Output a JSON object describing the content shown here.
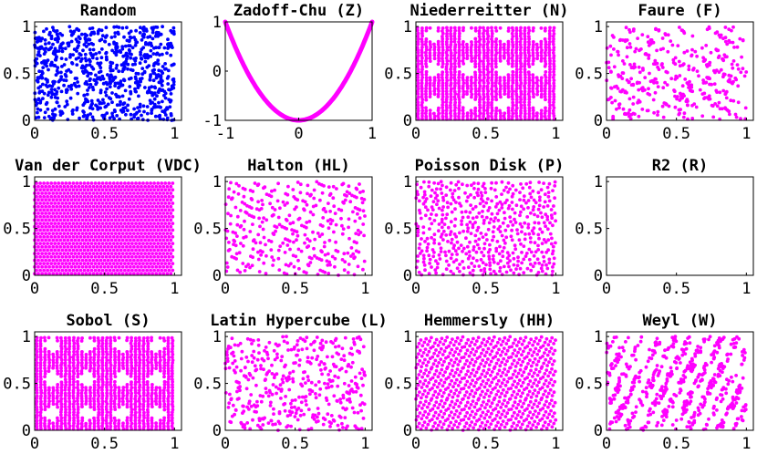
{
  "chart_data": [
    {
      "id": "random",
      "type": "scatter",
      "title": "Random",
      "pattern": "random",
      "color": "#0000ff",
      "xlim": [
        0,
        1.05
      ],
      "ylim": [
        0,
        1.05
      ],
      "xticks": [
        {
          "v": 0,
          "label": "0"
        },
        {
          "v": 0.5,
          "label": "0.5"
        },
        {
          "v": 1,
          "label": "1"
        }
      ],
      "yticks": [
        {
          "v": 0,
          "label": "0"
        },
        {
          "v": 0.5,
          "label": "0.5"
        },
        {
          "v": 1,
          "label": "1"
        }
      ]
    },
    {
      "id": "zadoff-chu",
      "type": "line",
      "title": "Zadoff-Chu (Z)",
      "pattern": "parabola",
      "color": "#ff00ff",
      "formula": "y = 2x^2 - 1",
      "xlim": [
        -1,
        1
      ],
      "ylim": [
        -1,
        1
      ],
      "xticks": [
        {
          "v": -1,
          "label": "-1"
        },
        {
          "v": 0,
          "label": "0"
        },
        {
          "v": 1,
          "label": "1"
        }
      ],
      "yticks": [
        {
          "v": -1,
          "label": "-1"
        },
        {
          "v": 0,
          "label": "0"
        },
        {
          "v": 1,
          "label": "1"
        }
      ]
    },
    {
      "id": "niederreiter",
      "type": "scatter",
      "title": "Niederreitter (N)",
      "pattern": "diamond-lattice",
      "color": "#ff00ff",
      "xlim": [
        0,
        1.05
      ],
      "ylim": [
        0,
        1.05
      ],
      "xticks": [
        {
          "v": 0,
          "label": "0"
        },
        {
          "v": 0.5,
          "label": "0.5"
        },
        {
          "v": 1,
          "label": "1"
        }
      ],
      "yticks": [
        {
          "v": 0,
          "label": "0"
        },
        {
          "v": 0.5,
          "label": "0.5"
        },
        {
          "v": 1,
          "label": "1"
        }
      ]
    },
    {
      "id": "faure",
      "type": "scatter",
      "title": "Faure (F)",
      "pattern": "diagonal-bands",
      "color": "#ff00ff",
      "xlim": [
        0,
        1.05
      ],
      "ylim": [
        0,
        1.05
      ],
      "xticks": [
        {
          "v": 0,
          "label": "0"
        },
        {
          "v": 0.5,
          "label": "0.5"
        },
        {
          "v": 1,
          "label": "1"
        }
      ],
      "yticks": [
        {
          "v": 0,
          "label": "0"
        },
        {
          "v": 0.5,
          "label": "0.5"
        },
        {
          "v": 1,
          "label": "1"
        }
      ]
    },
    {
      "id": "van-der-corput",
      "type": "scatter",
      "title": "Van der Corput (VDC)",
      "pattern": "dense-lattice",
      "color": "#ff00ff",
      "xlim": [
        0,
        1.05
      ],
      "ylim": [
        0,
        1.05
      ],
      "xticks": [
        {
          "v": 0,
          "label": "0"
        },
        {
          "v": 0.5,
          "label": "0.5"
        },
        {
          "v": 1,
          "label": "1"
        }
      ],
      "yticks": [
        {
          "v": 0,
          "label": "0"
        },
        {
          "v": 0.5,
          "label": "0.5"
        },
        {
          "v": 1,
          "label": "1"
        }
      ]
    },
    {
      "id": "halton",
      "type": "scatter",
      "title": "Halton (HL)",
      "pattern": "diagonal-lines",
      "color": "#ff00ff",
      "xlim": [
        0,
        1.05
      ],
      "ylim": [
        0,
        1.05
      ],
      "xticks": [
        {
          "v": 0,
          "label": "0"
        },
        {
          "v": 0.5,
          "label": "0.5"
        },
        {
          "v": 1,
          "label": "1"
        }
      ],
      "yticks": [
        {
          "v": 0,
          "label": "0"
        },
        {
          "v": 0.5,
          "label": "0.5"
        },
        {
          "v": 1,
          "label": "1"
        }
      ]
    },
    {
      "id": "poisson-disk",
      "type": "scatter",
      "title": "Poisson Disk (P)",
      "pattern": "blue-noise",
      "color": "#ff00ff",
      "xlim": [
        0,
        1.05
      ],
      "ylim": [
        0,
        1.05
      ],
      "xticks": [
        {
          "v": 0,
          "label": "0"
        },
        {
          "v": 0.5,
          "label": "0.5"
        },
        {
          "v": 1,
          "label": "1"
        }
      ],
      "yticks": [
        {
          "v": 0,
          "label": "0"
        },
        {
          "v": 0.5,
          "label": "0.5"
        },
        {
          "v": 1,
          "label": "1"
        }
      ]
    },
    {
      "id": "r2",
      "type": "scatter",
      "title": "R2 (R)",
      "pattern": "r2-sequence",
      "color": "#ff00ff",
      "xlim": [
        0,
        1.05
      ],
      "ylim": [
        0,
        1.05
      ],
      "xticks": [
        {
          "v": 0,
          "label": "0"
        },
        {
          "v": 0.5,
          "label": "0.5"
        },
        {
          "v": 1,
          "label": "1"
        }
      ],
      "yticks": [
        {
          "v": 0,
          "label": "0"
        },
        {
          "v": 0.5,
          "label": "0.5"
        },
        {
          "v": 1,
          "label": "1"
        }
      ]
    },
    {
      "id": "sobol",
      "type": "scatter",
      "title": "Sobol (S)",
      "pattern": "diamond-lattice",
      "color": "#ff00ff",
      "xlim": [
        0,
        1.05
      ],
      "ylim": [
        0,
        1.05
      ],
      "xticks": [
        {
          "v": 0,
          "label": "0"
        },
        {
          "v": 0.5,
          "label": "0.5"
        },
        {
          "v": 1,
          "label": "1"
        }
      ],
      "yticks": [
        {
          "v": 0,
          "label": "0"
        },
        {
          "v": 0.5,
          "label": "0.5"
        },
        {
          "v": 1,
          "label": "1"
        }
      ]
    },
    {
      "id": "latin-hypercube",
      "type": "scatter",
      "title": "Latin Hypercube (L)",
      "pattern": "latin-hypercube",
      "color": "#ff00ff",
      "xlim": [
        0,
        1.05
      ],
      "ylim": [
        0,
        1.05
      ],
      "xticks": [
        {
          "v": 0,
          "label": "0"
        },
        {
          "v": 0.5,
          "label": "0.5"
        },
        {
          "v": 1,
          "label": "1"
        }
      ],
      "yticks": [
        {
          "v": 0,
          "label": "0"
        },
        {
          "v": 0.5,
          "label": "0.5"
        },
        {
          "v": 1,
          "label": "1"
        }
      ]
    },
    {
      "id": "hemmersly",
      "type": "scatter",
      "title": "Hemmersly (HH)",
      "pattern": "hammersley",
      "color": "#ff00ff",
      "xlim": [
        0,
        1.05
      ],
      "ylim": [
        0,
        1.05
      ],
      "xticks": [
        {
          "v": 0,
          "label": "0"
        },
        {
          "v": 0.5,
          "label": "0.5"
        },
        {
          "v": 1,
          "label": "1"
        }
      ],
      "yticks": [
        {
          "v": 0,
          "label": "0"
        },
        {
          "v": 0.5,
          "label": "0.5"
        },
        {
          "v": 1,
          "label": "1"
        }
      ]
    },
    {
      "id": "weyl",
      "type": "scatter",
      "title": "Weyl (W)",
      "pattern": "steep-bands",
      "color": "#ff00ff",
      "xlim": [
        0,
        1.05
      ],
      "ylim": [
        0,
        1.05
      ],
      "xticks": [
        {
          "v": 0,
          "label": "0"
        },
        {
          "v": 0.5,
          "label": "0.5"
        },
        {
          "v": 1,
          "label": "1"
        }
      ],
      "yticks": [
        {
          "v": 0,
          "label": "0"
        },
        {
          "v": 0.5,
          "label": "0.5"
        },
        {
          "v": 1,
          "label": "1"
        }
      ]
    }
  ]
}
